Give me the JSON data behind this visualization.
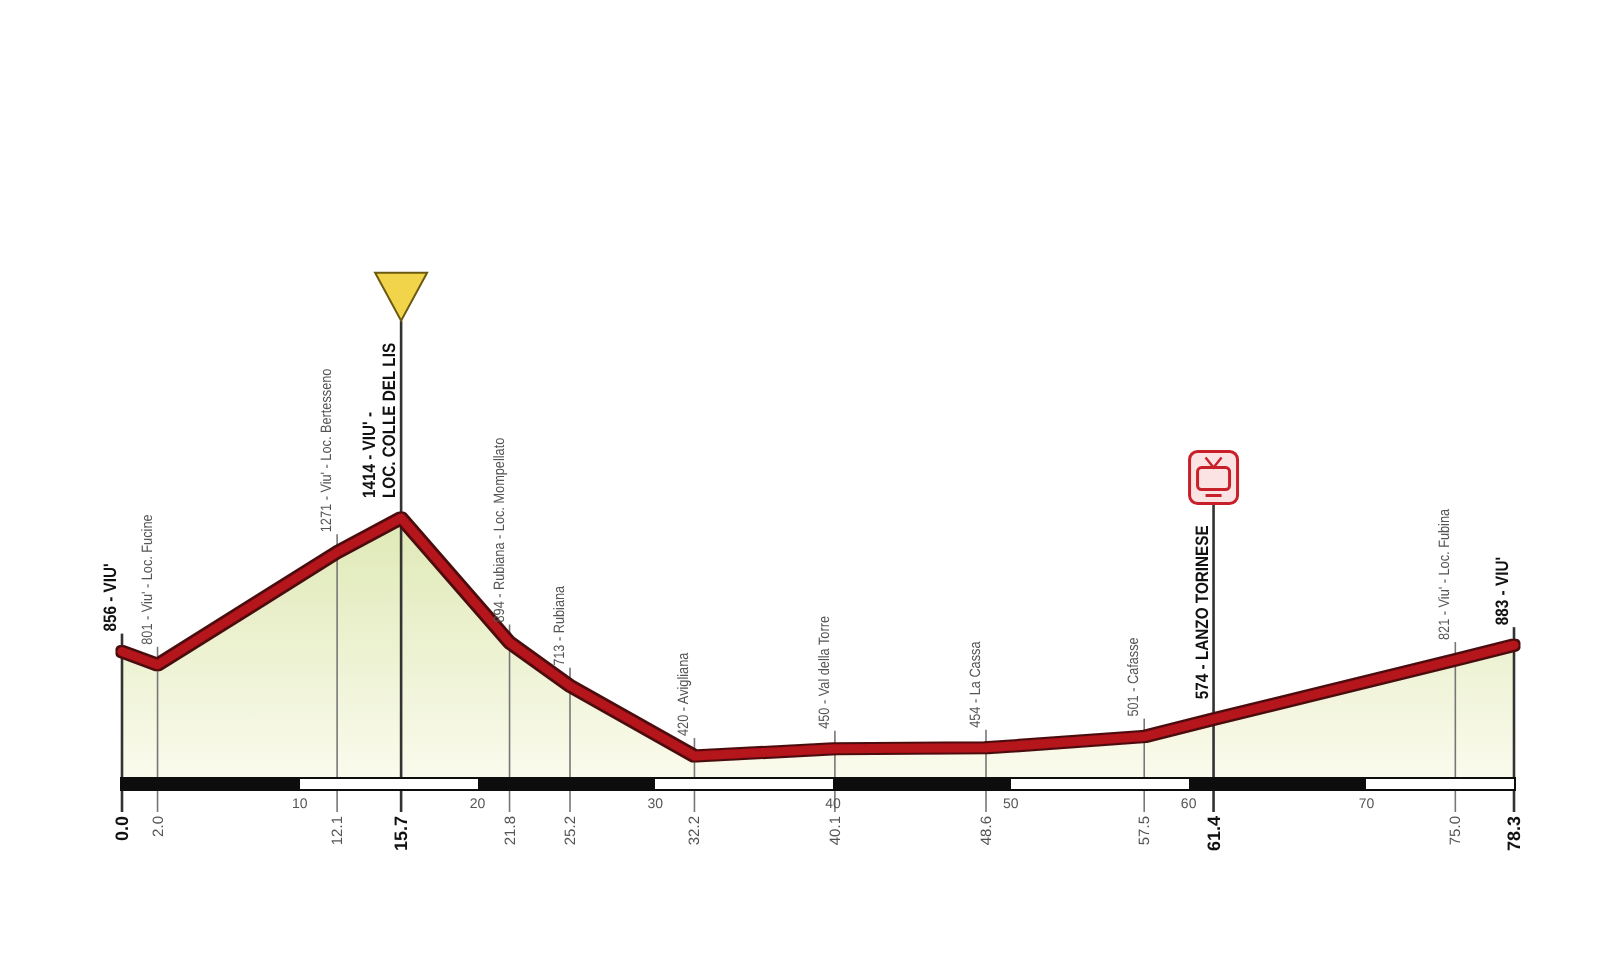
{
  "chart_data": {
    "type": "area",
    "color": "#b5121b",
    "x": [
      0,
      2,
      12.1,
      15.7,
      21.8,
      25.2,
      32.2,
      40.1,
      48.6,
      57.5,
      61.4,
      75,
      78.3
    ],
    "values": [
      856,
      801,
      1271,
      1414,
      894,
      713,
      420,
      450,
      454,
      501,
      574,
      821,
      883
    ],
    "value_labels": [
      "856 - VIU'",
      "801 - Viu' - Loc. Fucine",
      "1271 - Viu' - Loc. Bertesseno",
      "1414 - VIU' - LOC. COLLE DEL LIS",
      "894 - Rubiana - Loc. Mompellato",
      "713 - Rubiana",
      "420 - Avigliana",
      "450 - Val della Torre",
      "454 - La Cassa",
      "501 - Cafasse",
      "574 - LANZO TORINESE",
      "821 - Viu' - Loc. Fubina",
      "883 - VIU'"
    ],
    "xlim": [
      0,
      78.3
    ],
    "xticks": [
      10,
      20,
      30,
      40,
      50,
      60,
      70
    ],
    "annotations": [
      {
        "text": "0.0",
        "x": 0,
        "y": 856
      },
      {
        "text": "2.0",
        "x": 2,
        "y": 801
      },
      {
        "text": "12.1",
        "x": 12.1,
        "y": 1271
      },
      {
        "text": "15.7",
        "x": 15.7,
        "y": 1414
      },
      {
        "text": "21.8",
        "x": 21.8,
        "y": 894
      },
      {
        "text": "25.2",
        "x": 25.2,
        "y": 713
      },
      {
        "text": "32.2",
        "x": 32.2,
        "y": 420
      },
      {
        "text": "40.1",
        "x": 40.1,
        "y": 450
      },
      {
        "text": "48.6",
        "x": 48.6,
        "y": 454
      },
      {
        "text": "57.5",
        "x": 57.5,
        "y": 501
      },
      {
        "text": "61.4",
        "x": 61.4,
        "y": 574
      },
      {
        "text": "75.0",
        "x": 75,
        "y": 821
      },
      {
        "text": "78.3",
        "x": 78.3,
        "y": 883
      }
    ]
  }
}
